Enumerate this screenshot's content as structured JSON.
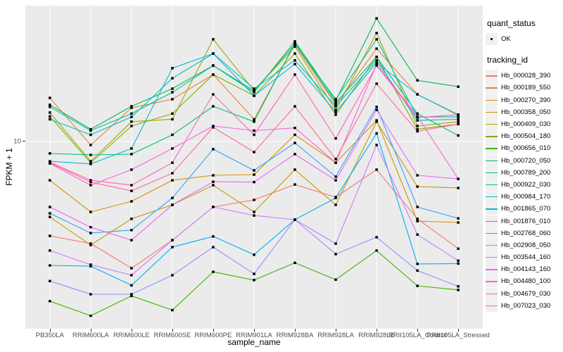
{
  "chart": {
    "xlabel": "sample_name",
    "ylabel": "FPKM + 1",
    "y_tick_label": "10"
  },
  "legend": {
    "quant_status_title": "quant_status",
    "quant_status_items": [
      "OK"
    ],
    "tracking_id_title": "tracking_id"
  },
  "colors": {
    "panel_bg": "#EBEBEB",
    "gridline": "#FFFFFF",
    "tick_text": "#4D4D4D",
    "axis_text": "#000000",
    "marker": "#000000",
    "legend_key_bg": "#F0F0F0"
  },
  "chart_data": {
    "type": "line",
    "title": "",
    "xlabel": "sample_name",
    "ylabel": "FPKM + 1",
    "y_scale": "log10",
    "y_axis_ticks": [
      10
    ],
    "ylim": [
      0.9,
      57
    ],
    "grid": true,
    "legend_position": "right",
    "point_legend": {
      "title": "quant_status",
      "label": "OK",
      "shape": "black-point"
    },
    "categories": [
      "PB350LA",
      "RRIM600LA",
      "RRIM600LE",
      "RRIM600SE",
      "RRIM600PE",
      "RRIM901LA",
      "RRIM928BA",
      "RRIM928LA",
      "RRIM928LE",
      "RRII105LA_Control",
      "RRII105LA_Stressed"
    ],
    "series": [
      {
        "name": "Hb_000028_390",
        "color": "#F8766D",
        "values": [
          2.98,
          2.7,
          1.97,
          2.82,
          4.32,
          4.73,
          5.76,
          4.9,
          6.97,
          3.71,
          2.53
        ]
      },
      {
        "name": "Hb_000189_550",
        "color": "#EA8331",
        "values": [
          17.5,
          9.56,
          15.4,
          17.2,
          23.6,
          13.3,
          34.8,
          16.0,
          32.9,
          18.3,
          14.0
        ]
      },
      {
        "name": "Hb_000270_390",
        "color": "#D89000",
        "values": [
          6.08,
          4.05,
          4.64,
          6.08,
          6.48,
          6.54,
          10.9,
          7.62,
          13.1,
          3.6,
          3.54
        ]
      },
      {
        "name": "Hb_000358_050",
        "color": "#C09B00",
        "values": [
          3.8,
          2.65,
          3.71,
          4.44,
          5.71,
          4.05,
          6.97,
          4.44,
          12.9,
          5.61,
          5.51
        ]
      },
      {
        "name": "Hb_000409_030",
        "color": "#A3A500",
        "values": [
          14.5,
          7.76,
          12.9,
          13.3,
          37.1,
          19.2,
          33.8,
          15.0,
          40.2,
          12.2,
          12.9
        ]
      },
      {
        "name": "Hb_000504_180",
        "color": "#7CAE00",
        "values": [
          13.8,
          7.62,
          12.2,
          14.3,
          23.6,
          18.0,
          30.9,
          14.1,
          29.6,
          11.7,
          12.5
        ]
      },
      {
        "name": "Hb_000656_010",
        "color": "#39B600",
        "values": [
          1.29,
          1.07,
          1.38,
          1.15,
          1.88,
          1.69,
          2.11,
          1.7,
          2.47,
          1.57,
          1.49
        ]
      },
      {
        "name": "Hb_000720_050",
        "color": "#00BB4E",
        "values": [
          16.0,
          11.7,
          15.7,
          19.7,
          26.5,
          18.8,
          36.1,
          16.9,
          48.5,
          21.9,
          20.2
        ]
      },
      {
        "name": "Hb_000789_200",
        "color": "#00C079",
        "values": [
          8.58,
          8.42,
          8.5,
          10.9,
          15.7,
          12.9,
          35.4,
          16.4,
          29.6,
          14.3,
          10.8
        ]
      },
      {
        "name": "Hb_000922_030",
        "color": "#00C19C",
        "values": [
          15.6,
          11.5,
          14.3,
          18.8,
          26.5,
          19.2,
          34.8,
          17.2,
          37.1,
          13.7,
          13.7
        ]
      },
      {
        "name": "Hb_000984_170",
        "color": "#00BFC4",
        "values": [
          13.3,
          10.9,
          13.7,
          22.5,
          30.9,
          19.7,
          28.3,
          15.7,
          28.3,
          13.1,
          13.3
        ]
      },
      {
        "name": "Hb_001865_070",
        "color": "#00BBDA",
        "values": [
          7.76,
          7.5,
          9.14,
          25.6,
          30.9,
          18.0,
          27.0,
          14.6,
          27.5,
          18.3,
          14.1
        ]
      },
      {
        "name": "Hb_001876_010",
        "color": "#00B0F6",
        "values": [
          2.04,
          2.02,
          1.58,
          2.58,
          2.96,
          2.34,
          3.67,
          4.85,
          11.1,
          2.08,
          2.09
        ]
      },
      {
        "name": "Hb_002768_060",
        "color": "#35A2FF",
        "values": [
          3.98,
          3.09,
          3.21,
          4.85,
          9.06,
          6.9,
          9.82,
          6.37,
          15.6,
          4.32,
          3.73
        ]
      },
      {
        "name": "Hb_002908_050",
        "color": "#9590FF",
        "values": [
          1.67,
          1.41,
          1.41,
          1.8,
          2.58,
          1.83,
          3.67,
          2.36,
          2.93,
          1.91,
          1.56
        ]
      },
      {
        "name": "Hb_003544_160",
        "color": "#C77CFF",
        "values": [
          2.47,
          2.06,
          1.8,
          2.82,
          4.32,
          3.87,
          3.67,
          2.7,
          9.56,
          3.03,
          2.17
        ]
      },
      {
        "name": "Hb_004143_160",
        "color": "#E76BF3",
        "values": [
          4.32,
          3.33,
          2.82,
          4.44,
          5.97,
          5.94,
          8.5,
          6.08,
          15.0,
          6.48,
          6.19
        ]
      },
      {
        "name": "Hb_004480_100",
        "color": "#FA62DB",
        "values": [
          7.55,
          5.71,
          6.97,
          9.14,
          12.2,
          11.5,
          11.9,
          7.62,
          27.0,
          13.8,
          6.19
        ]
      },
      {
        "name": "Hb_004679_030",
        "color": "#FF62BC",
        "values": [
          7.68,
          6.08,
          5.71,
          7.62,
          18.3,
          10.9,
          23.6,
          10.4,
          26.5,
          13.6,
          14.1
        ]
      },
      {
        "name": "Hb_007023_030",
        "color": "#FF6A98",
        "values": [
          7.62,
          5.94,
          5.31,
          6.66,
          12.0,
          8.73,
          15.7,
          7.98,
          21.0,
          11.4,
          12.5
        ]
      }
    ]
  }
}
